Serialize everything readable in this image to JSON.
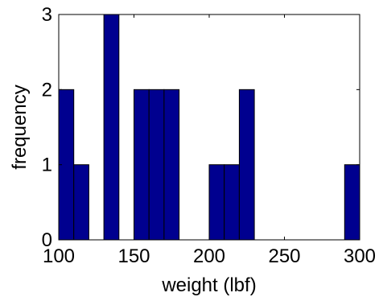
{
  "chart_data": {
    "type": "bar",
    "subtype": "histogram",
    "xlabel": "weight (lbf)",
    "ylabel": "frequency",
    "xlim": [
      100,
      300
    ],
    "ylim": [
      0,
      3
    ],
    "x_ticks": [
      "100",
      "150",
      "200",
      "250",
      "300"
    ],
    "y_ticks": [
      "0",
      "1",
      "2",
      "3"
    ],
    "bin_width": 10,
    "bins": [
      {
        "start": 100,
        "end": 110,
        "value": 2
      },
      {
        "start": 110,
        "end": 120,
        "value": 1
      },
      {
        "start": 120,
        "end": 130,
        "value": 0
      },
      {
        "start": 130,
        "end": 140,
        "value": 3
      },
      {
        "start": 140,
        "end": 150,
        "value": 0
      },
      {
        "start": 150,
        "end": 160,
        "value": 2
      },
      {
        "start": 160,
        "end": 170,
        "value": 2
      },
      {
        "start": 170,
        "end": 180,
        "value": 2
      },
      {
        "start": 180,
        "end": 190,
        "value": 0
      },
      {
        "start": 190,
        "end": 200,
        "value": 0
      },
      {
        "start": 200,
        "end": 210,
        "value": 1
      },
      {
        "start": 210,
        "end": 220,
        "value": 1
      },
      {
        "start": 220,
        "end": 230,
        "value": 2
      },
      {
        "start": 230,
        "end": 240,
        "value": 0
      },
      {
        "start": 240,
        "end": 250,
        "value": 0
      },
      {
        "start": 250,
        "end": 260,
        "value": 0
      },
      {
        "start": 260,
        "end": 270,
        "value": 0
      },
      {
        "start": 270,
        "end": 280,
        "value": 0
      },
      {
        "start": 280,
        "end": 290,
        "value": 0
      },
      {
        "start": 290,
        "end": 300,
        "value": 1
      }
    ],
    "grid": false,
    "bar_color": "#00008f",
    "bar_edge_color": "#000000"
  }
}
